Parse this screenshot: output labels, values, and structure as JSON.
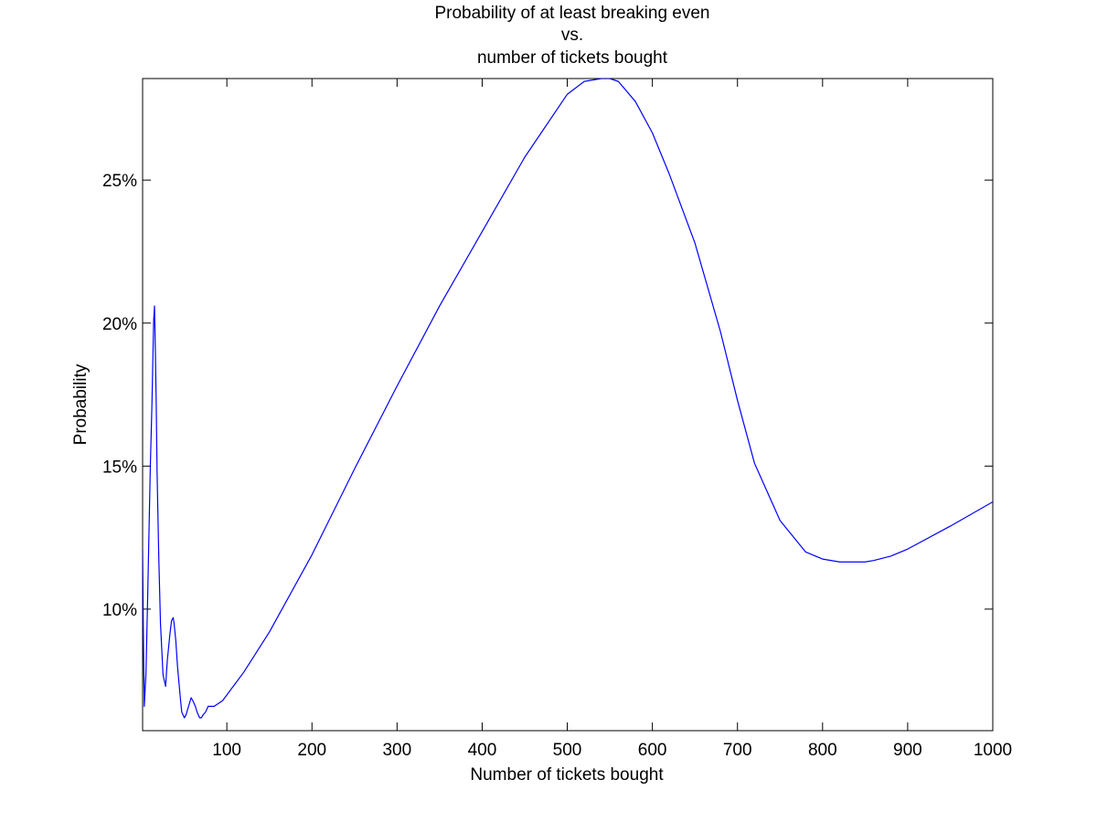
{
  "chart_data": {
    "type": "line",
    "title_lines": [
      "Probability of at least breaking even",
      "vs.",
      "number of tickets bought"
    ],
    "xlabel": "Number of tickets bought",
    "ylabel": "Probability",
    "xlim": [
      1,
      1000
    ],
    "ylim": [
      0.0575,
      0.2855
    ],
    "x_ticks": [
      100,
      200,
      300,
      400,
      500,
      600,
      700,
      800,
      900,
      1000
    ],
    "x_tick_labels": [
      "100",
      "200",
      "300",
      "400",
      "500",
      "600",
      "700",
      "800",
      "900",
      "1000"
    ],
    "y_ticks": [
      0.1,
      0.15,
      0.2,
      0.25
    ],
    "y_tick_labels": [
      "10%",
      "15%",
      "20%",
      "25%"
    ],
    "grid": false,
    "series": [
      {
        "color": "#0000ff",
        "x": [
          1,
          2,
          3,
          5,
          7,
          10,
          12,
          14,
          15,
          16,
          17,
          18,
          20,
          22,
          25,
          28,
          30,
          33,
          35,
          37,
          38,
          40,
          42,
          45,
          47,
          50,
          52,
          55,
          58,
          60,
          63,
          65,
          68,
          70,
          72,
          75,
          78,
          80,
          85,
          90,
          95,
          100,
          110,
          120,
          150,
          200,
          250,
          300,
          350,
          400,
          450,
          500,
          520,
          540,
          550,
          560,
          580,
          600,
          620,
          650,
          680,
          700,
          720,
          750,
          780,
          800,
          820,
          840,
          850,
          860,
          880,
          900,
          950,
          1000
        ],
        "y": [
          0.121,
          0.088,
          0.066,
          0.078,
          0.105,
          0.149,
          0.172,
          0.201,
          0.206,
          0.19,
          0.172,
          0.148,
          0.118,
          0.095,
          0.077,
          0.073,
          0.082,
          0.091,
          0.096,
          0.097,
          0.095,
          0.089,
          0.08,
          0.07,
          0.064,
          0.062,
          0.063,
          0.066,
          0.069,
          0.068,
          0.066,
          0.064,
          0.062,
          0.062,
          0.063,
          0.064,
          0.066,
          0.066,
          0.066,
          0.067,
          0.068,
          0.07,
          0.074,
          0.078,
          0.092,
          0.119,
          0.149,
          0.178,
          0.206,
          0.232,
          0.258,
          0.28,
          0.2845,
          0.2855,
          0.2855,
          0.2845,
          0.2775,
          0.2665,
          0.252,
          0.228,
          0.197,
          0.173,
          0.151,
          0.131,
          0.12,
          0.1175,
          0.1165,
          0.1165,
          0.1165,
          0.117,
          0.1185,
          0.121,
          0.129,
          0.1375
        ]
      }
    ]
  }
}
